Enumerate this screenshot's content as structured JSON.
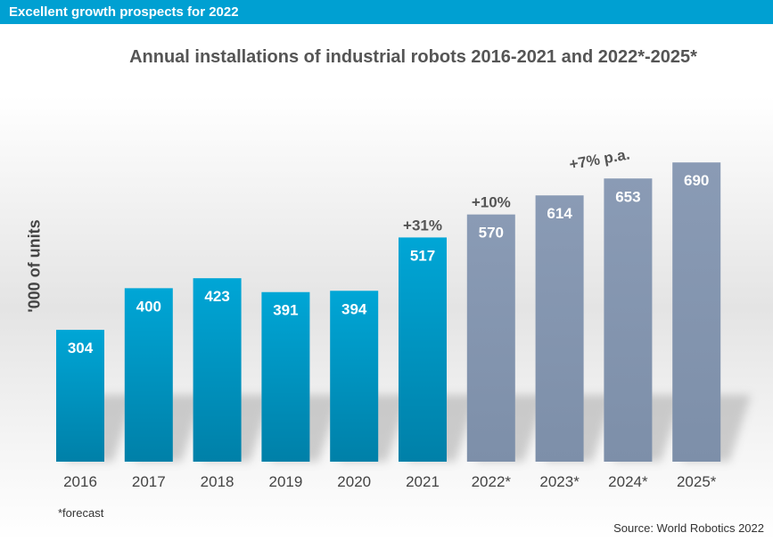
{
  "header": {
    "title": "Excellent growth prospects for 2022"
  },
  "footnote": "*forecast",
  "source": "Source: World Robotics 2022",
  "chart_data": {
    "type": "bar",
    "title": "Annual installations of industrial robots 2016-2021 and 2022*-2025*",
    "ylabel": "'000 of units",
    "xlabel": "",
    "ylim": [
      0,
      750
    ],
    "grid": false,
    "categories": [
      "2016",
      "2017",
      "2018",
      "2019",
      "2020",
      "2021",
      "2022*",
      "2023*",
      "2024*",
      "2025*"
    ],
    "values": [
      304,
      400,
      423,
      391,
      394,
      517,
      570,
      614,
      653,
      690
    ],
    "value_labels": [
      "304",
      "400",
      "423",
      "391",
      "394",
      "517",
      "570",
      "614",
      "653",
      "690"
    ],
    "forecast": [
      false,
      false,
      false,
      false,
      false,
      false,
      true,
      true,
      true,
      true
    ],
    "colors": {
      "actual": "#0098c8",
      "actual_dark": "#007aa3",
      "forecast": "#8596b0"
    },
    "annotations": [
      {
        "text": "+31%",
        "category": "2021"
      },
      {
        "text": "+10%",
        "category": "2022*"
      },
      {
        "text": "+7% p.a.",
        "category": "2024*"
      }
    ]
  }
}
